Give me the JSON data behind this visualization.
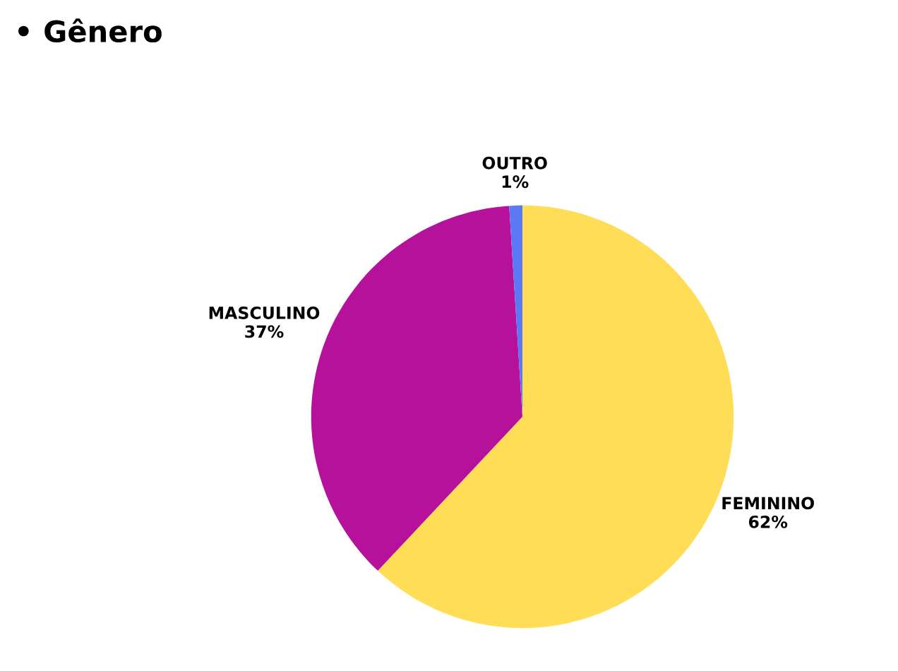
{
  "chart_data": {
    "type": "pie",
    "title": "• Gênero",
    "categories": [
      "FEMININO",
      "MASCULINO",
      "OUTRO"
    ],
    "values": [
      62,
      37,
      1
    ],
    "value_labels": [
      "62%",
      "37%",
      "1%"
    ],
    "colors": [
      "#ffdd57",
      "#b5119b",
      "#5b78f5"
    ]
  }
}
